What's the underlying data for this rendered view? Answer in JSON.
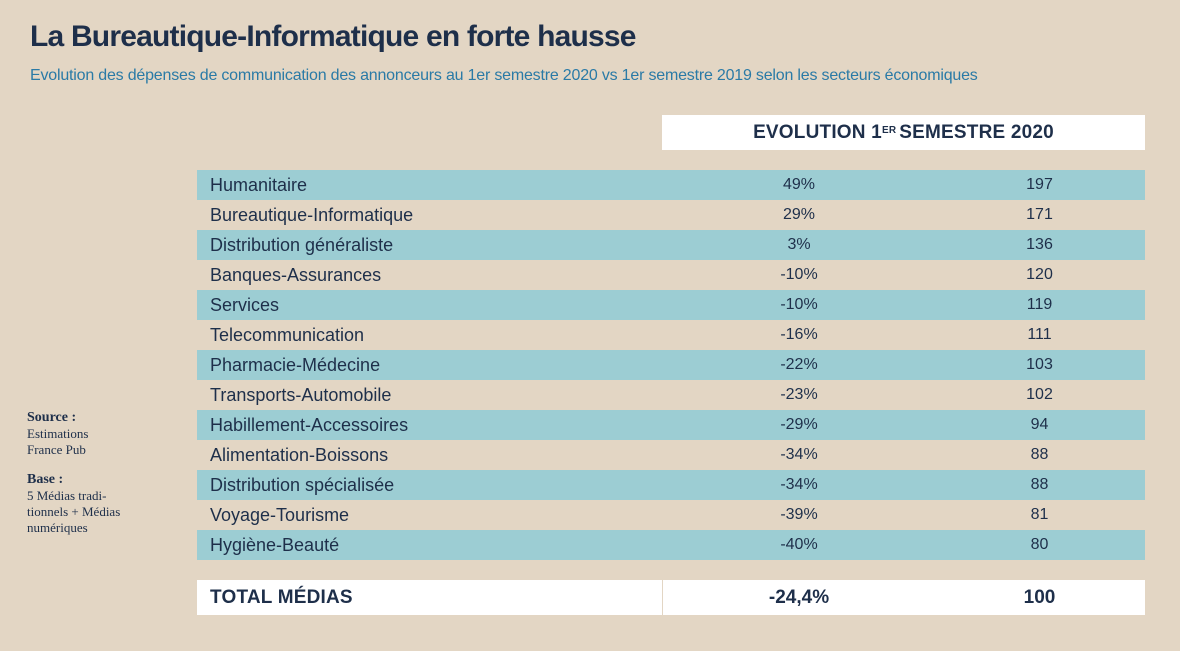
{
  "title": "La Bureautique-Informatique en forte hausse",
  "subtitle": "Evolution des dépenses de communication des annonceurs au 1er semestre 2020 vs  1er semestre 2019 selon les secteurs économiques",
  "header": {
    "prefix": "EVOLUTION 1",
    "sup": "ER",
    "suffix": "SEMESTRE 2020"
  },
  "notes": {
    "source_label": "Source :",
    "source_line1": "Estimations",
    "source_line2": "France Pub",
    "base_label": "Base :",
    "base_line1": "5 Médias tradi-",
    "base_line2": "tionnels + Médias",
    "base_line3": "numériques"
  },
  "chart_data": {
    "type": "table",
    "rows": [
      {
        "sector": "Humanitaire",
        "evolution": "49%",
        "index": "197"
      },
      {
        "sector": "Bureautique-Informatique",
        "evolution": "29%",
        "index": "171"
      },
      {
        "sector": "Distribution généraliste",
        "evolution": "3%",
        "index": "136"
      },
      {
        "sector": "Banques-Assurances",
        "evolution": "-10%",
        "index": "120"
      },
      {
        "sector": "Services",
        "evolution": "-10%",
        "index": "119"
      },
      {
        "sector": "Telecommunication",
        "evolution": "-16%",
        "index": "111"
      },
      {
        "sector": "Pharmacie-Médecine",
        "evolution": "-22%",
        "index": "103"
      },
      {
        "sector": "Transports-Automobile",
        "evolution": "-23%",
        "index": "102"
      },
      {
        "sector": "Habillement-Accessoires",
        "evolution": "-29%",
        "index": "94"
      },
      {
        "sector": "Alimentation-Boissons",
        "evolution": "-34%",
        "index": "88"
      },
      {
        "sector": "Distribution spécialisée",
        "evolution": "-34%",
        "index": "88"
      },
      {
        "sector": "Voyage-Tourisme",
        "evolution": "-39%",
        "index": "81"
      },
      {
        "sector": "Hygiène-Beauté",
        "evolution": "-40%",
        "index": "80"
      }
    ],
    "total": {
      "sector": "TOTAL MÉDIAS",
      "evolution": "-24,4%",
      "index": "100"
    }
  },
  "colors": {
    "background": "#e3d6c4",
    "row_band": "#9ccdd3",
    "title": "#1e2f4a",
    "subtitle": "#2a7aa6"
  }
}
